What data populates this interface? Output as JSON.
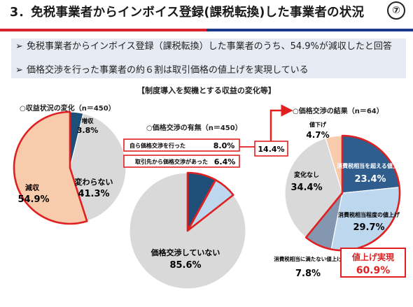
{
  "header": {
    "title": "3．免税事業者からインボイス登録(課税転換)した事業者の状況",
    "page_number": "⑦",
    "accent_red": "#d9232d",
    "accent_blue": "#1b3a8a"
  },
  "summary": {
    "bullet_mark": "➢",
    "bullets": [
      "免税事業者からインボイス登録（課税転換）した事業者のうち、54.9%が減収したと回答",
      "価格交渉を行った事業者の約６割は取引価格の値上げを実現している"
    ]
  },
  "section_title": "【制度導入を契機とする収益の変化等】",
  "callouts": {
    "link_total": "14.4%",
    "price_up_title": "値上げ実現",
    "price_up_value": "60.9%"
  },
  "chart_data": [
    {
      "type": "pie",
      "title": "○収益状況の変化（n＝450）",
      "slices": [
        {
          "label": "増収",
          "value": 3.8,
          "display": "3.8%",
          "color": "#1f4e79"
        },
        {
          "label": "変わらない",
          "value": 41.3,
          "display": "41.3%",
          "color": "#d9d9d9"
        },
        {
          "label": "減収",
          "value": 54.9,
          "display": "54.9%",
          "color": "#f8cbad",
          "highlight": true
        }
      ]
    },
    {
      "type": "pie",
      "title": "○価格交渉の有無（n＝450）",
      "slices": [
        {
          "label": "自ら価格交渉を行った",
          "value": 8.0,
          "display": "8.0%",
          "color": "#1f4e79",
          "highlight": true
        },
        {
          "label": "取引先から価格交渉があった",
          "value": 6.4,
          "display": "6.4%",
          "color": "#bdd7ee",
          "highlight": true
        },
        {
          "label": "価格交渉していない",
          "value": 85.6,
          "display": "85.6%",
          "color": "#d9d9d9"
        }
      ]
    },
    {
      "type": "pie",
      "title": "○価格交渉の結果（n＝64）",
      "slices": [
        {
          "label": "消費税相当を超える値上げ",
          "value": 23.4,
          "display": "23.4%",
          "color": "#2e5d8e",
          "highlight": true
        },
        {
          "label": "消費税相当程度の値上げ",
          "value": 29.7,
          "display": "29.7%",
          "color": "#bdd7ee",
          "highlight": true
        },
        {
          "label": "消費税相当に満たない値上げ",
          "value": 7.8,
          "display": "7.8%",
          "color": "#8497b0",
          "highlight": true
        },
        {
          "label": "変化なし",
          "value": 34.4,
          "display": "34.4%",
          "color": "#d9d9d9"
        },
        {
          "label": "値下げ",
          "value": 4.7,
          "display": "4.7%",
          "color": "#f8cbad"
        }
      ]
    }
  ]
}
